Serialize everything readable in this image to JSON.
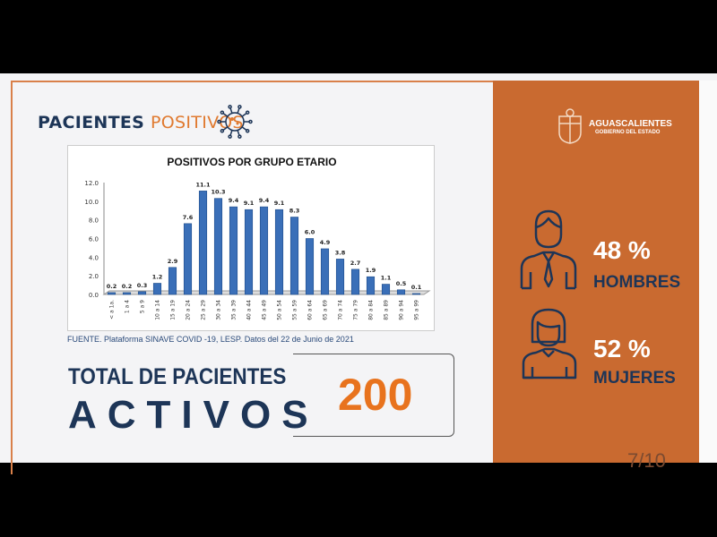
{
  "header": {
    "title_bold": "PACIENTES",
    "title_light": "POSITIVOS"
  },
  "logo": {
    "name": "AGUASCALIENTES",
    "sub": "GOBIERNO DEL ESTADO"
  },
  "chart_data": {
    "type": "bar",
    "title": "POSITIVOS POR GRUPO ETARIO",
    "categories": [
      "< a 1a.",
      "1 a 4",
      "5 a 9",
      "10 a 14",
      "15 a 19",
      "20 a 24",
      "25 a 29",
      "30 a 34",
      "35 a 39",
      "40 a 44",
      "45 a 49",
      "50 a 54",
      "55 a 59",
      "60 a 64",
      "65 a 69",
      "70 a 74",
      "75 a 79",
      "80 a 84",
      "85 a 89",
      "90 a 94",
      "95 a 99"
    ],
    "values": [
      0.2,
      0.2,
      0.3,
      1.2,
      2.9,
      7.6,
      11.1,
      10.3,
      9.4,
      9.1,
      9.4,
      9.1,
      8.3,
      6.0,
      4.9,
      3.8,
      2.7,
      1.9,
      1.1,
      0.5,
      0.1
    ],
    "yticks": [
      "0.0",
      "2.0",
      "4.0",
      "6.0",
      "8.0",
      "10.0",
      "12.0"
    ],
    "ylim": [
      0,
      12
    ],
    "color": "#3a6fb8"
  },
  "source": "FUENTE. Plataforma SINAVE COVID -19, LESP. Datos del 22 de Junio de 2021",
  "total": {
    "line1": "TOTAL DE PACIENTES",
    "line2": "ACTIVOS",
    "value": "200"
  },
  "gender": {
    "men_pct": "48 %",
    "men_label": "HOMBRES",
    "women_pct": "52 %",
    "women_label": "MUJERES"
  },
  "page": "7/10",
  "colors": {
    "orange": "#c96a30",
    "navy": "#1d3557",
    "accent": "#e8731e"
  }
}
